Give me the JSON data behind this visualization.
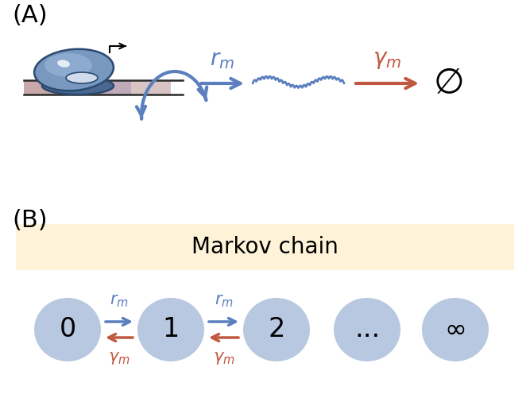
{
  "blue_color": "#5B7FBF",
  "red_color": "#C05840",
  "node_fill": "#B8C8E0",
  "markov_bg": "#FEF3D8",
  "panel_A_label": "(A)",
  "panel_B_label": "(B)",
  "markov_title": "Markov chain",
  "nodes": [
    "0",
    "1",
    "2",
    "...",
    "∞"
  ],
  "background": "#FFFFFF",
  "dna_colors": [
    "#C8A0A0",
    "#D4B8B8",
    "#C0A8C8",
    "#D8C0C0"
  ],
  "dna_line_color": "#2A2A2A",
  "rnap_main": "#7898C0",
  "rnap_dark": "#4A6890",
  "rnap_light": "#9AB8D8",
  "rnap_edge": "#2A4A70"
}
